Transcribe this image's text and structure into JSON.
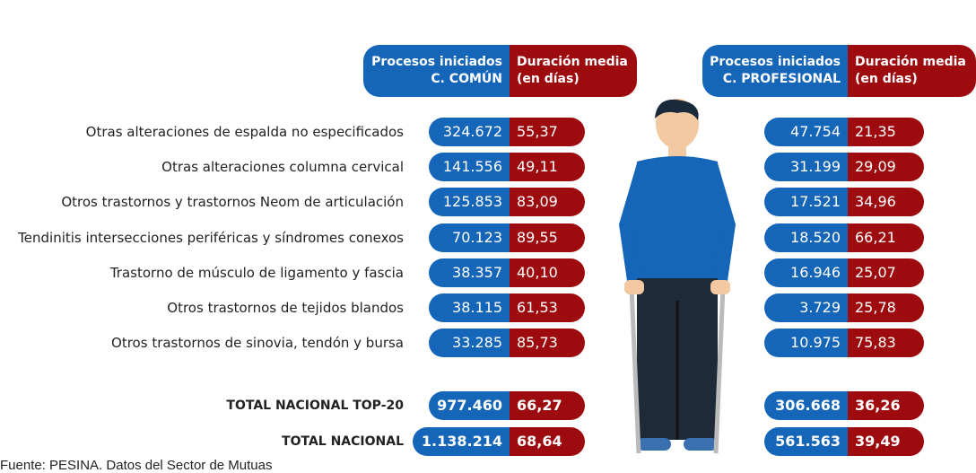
{
  "headers": {
    "left_cases": [
      "Procesos iniciados",
      "C. COMÚN"
    ],
    "left_duration": [
      "Duración media",
      "(en días)"
    ],
    "right_cases": [
      "Procesos iniciados",
      "C. PROFESIONAL"
    ],
    "right_duration": [
      "Duración media",
      "(en días)"
    ]
  },
  "rows": [
    {
      "label": "Otras alteraciones de espalda no especificados",
      "common_cases": "324.672",
      "common_duration": "55,37",
      "professional_cases": "47.754",
      "professional_duration": "21,35"
    },
    {
      "label": "Otras alteraciones columna cervical",
      "common_cases": "141.556",
      "common_duration": "49,11",
      "professional_cases": "31.199",
      "professional_duration": "29,09"
    },
    {
      "label": "Otros trastornos y trastornos Neom de articulación",
      "common_cases": "125.853",
      "common_duration": "83,09",
      "professional_cases": "17.521",
      "professional_duration": "34,96"
    },
    {
      "label": "Tendinitis intersecciones periféricas y síndromes conexos",
      "common_cases": "70.123",
      "common_duration": "89,55",
      "professional_cases": "18.520",
      "professional_duration": "66,21"
    },
    {
      "label": "Trastorno de músculo de ligamento y fascia",
      "common_cases": "38.357",
      "common_duration": "40,10",
      "professional_cases": "16.946",
      "professional_duration": "25,07"
    },
    {
      "label": "Otros trastornos de tejidos blandos",
      "common_cases": "38.115",
      "common_duration": "61,53",
      "professional_cases": "3.729",
      "professional_duration": "25,78"
    },
    {
      "label": "Otros trastornos de sinovia, tendón y bursa",
      "common_cases": "33.285",
      "common_duration": "85,73",
      "professional_cases": "10.975",
      "professional_duration": "75,83"
    }
  ],
  "totals": [
    {
      "label": "TOTAL NACIONAL TOP-20",
      "common_cases": "977.460",
      "common_duration": "66,27",
      "professional_cases": "306.668",
      "professional_duration": "36,26"
    },
    {
      "label": "TOTAL NACIONAL",
      "common_cases": "1.138.214",
      "common_duration": "68,64",
      "professional_cases": "561.563",
      "professional_duration": "39,49"
    }
  ],
  "source": "Fuente: PESINA. Datos del Sector de Mutuas"
}
